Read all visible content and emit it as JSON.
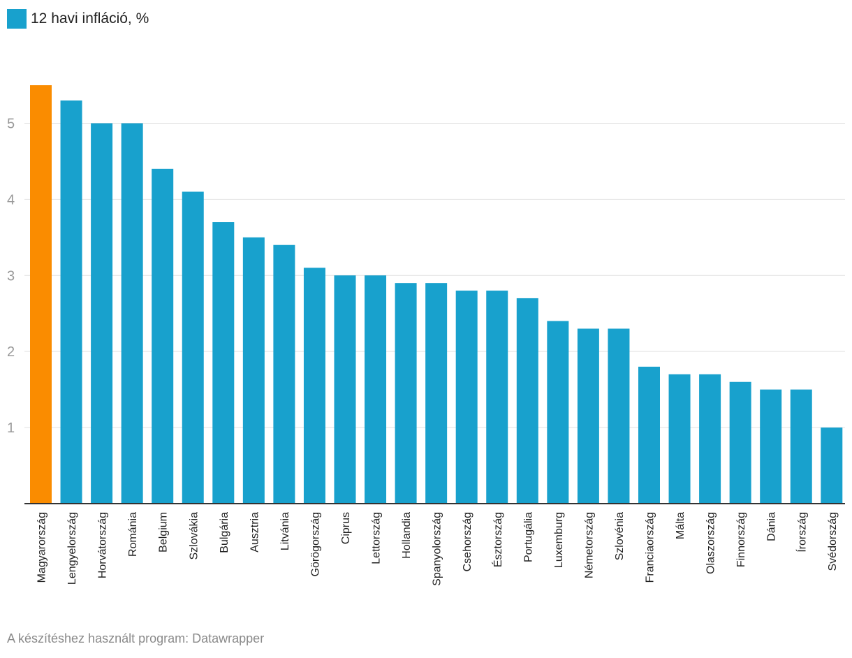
{
  "legend": {
    "label": "12 havi infláció, %",
    "color": "#18a1cd"
  },
  "footer": {
    "text": "A készítéshez használt program: Datawrapper"
  },
  "colors": {
    "bar": "#18a1cd",
    "highlight": "#fa8c00",
    "grid": "#e2e2e2",
    "axis": "#333333"
  },
  "chart_data": {
    "type": "bar",
    "categories": [
      "Magyarország",
      "Lengyelország",
      "Horvátország",
      "Románia",
      "Belgium",
      "Szlovákia",
      "Bulgária",
      "Ausztria",
      "Litvánia",
      "Görögország",
      "Ciprus",
      "Lettország",
      "Hollandia",
      "Spanyolország",
      "Csehország",
      "Észtország",
      "Portugália",
      "Luxemburg",
      "Németország",
      "Szlovénia",
      "Franciaország",
      "Málta",
      "Olaszország",
      "Finnország",
      "Dánia",
      "Írország",
      "Svédország"
    ],
    "series": [
      {
        "name": "12 havi infláció, %",
        "values": [
          5.5,
          5.3,
          5.0,
          5.0,
          4.4,
          4.1,
          3.7,
          3.5,
          3.4,
          3.1,
          3.0,
          3.0,
          2.9,
          2.9,
          2.8,
          2.8,
          2.7,
          2.4,
          2.3,
          2.3,
          1.8,
          1.7,
          1.7,
          1.6,
          1.5,
          1.5,
          1.0
        ]
      }
    ],
    "highlight_category": "Magyarország",
    "yticks": [
      1,
      2,
      3,
      4,
      5
    ],
    "ylim": [
      0,
      5.5
    ],
    "grid": true,
    "legend_position": "top-left"
  }
}
